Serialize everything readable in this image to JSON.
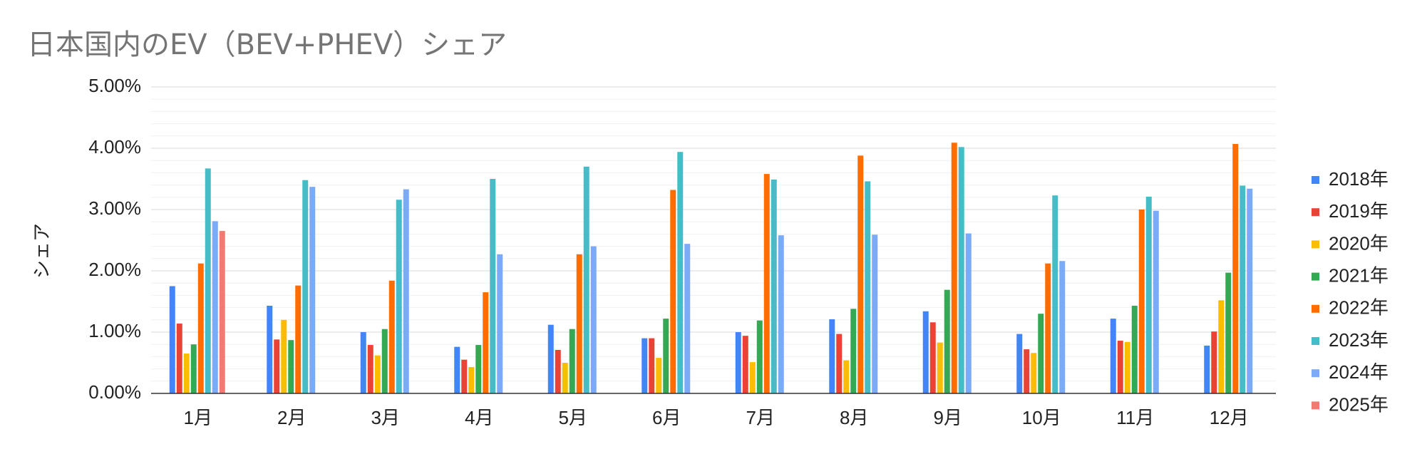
{
  "chart_data": {
    "type": "bar",
    "title": "日本国内のEV（BEV+PHEV）シェア",
    "xlabel": "",
    "ylabel": "シェア",
    "ylim": [
      0,
      5
    ],
    "yticks": [
      "0.00%",
      "1.00%",
      "2.00%",
      "3.00%",
      "4.00%",
      "5.00%"
    ],
    "grid": true,
    "legend_position": "right",
    "categories": [
      "1月",
      "2月",
      "3月",
      "4月",
      "5月",
      "6月",
      "7月",
      "8月",
      "9月",
      "10月",
      "11月",
      "12月"
    ],
    "series": [
      {
        "name": "2018年",
        "color": "#4285F4",
        "values": [
          1.75,
          1.43,
          1.0,
          0.76,
          1.12,
          0.9,
          1.0,
          1.21,
          1.34,
          0.97,
          1.22,
          0.78
        ]
      },
      {
        "name": "2019年",
        "color": "#EA4335",
        "values": [
          1.14,
          0.88,
          0.79,
          0.55,
          0.71,
          0.9,
          0.94,
          0.97,
          1.16,
          0.72,
          0.86,
          1.01
        ]
      },
      {
        "name": "2020年",
        "color": "#FBBC04",
        "values": [
          0.65,
          1.2,
          0.62,
          0.43,
          0.5,
          0.58,
          0.51,
          0.54,
          0.83,
          0.66,
          0.84,
          1.52
        ]
      },
      {
        "name": "2021年",
        "color": "#34A853",
        "values": [
          0.8,
          0.87,
          1.05,
          0.79,
          1.05,
          1.22,
          1.19,
          1.38,
          1.69,
          1.3,
          1.43,
          1.97
        ]
      },
      {
        "name": "2022年",
        "color": "#FF6D01",
        "values": [
          2.12,
          1.76,
          1.84,
          1.65,
          2.27,
          3.32,
          3.58,
          3.88,
          4.09,
          2.12,
          3.0,
          4.07
        ]
      },
      {
        "name": "2023年",
        "color": "#46BDC6",
        "values": [
          3.67,
          3.48,
          3.16,
          3.5,
          3.7,
          3.94,
          3.49,
          3.46,
          4.02,
          3.23,
          3.21,
          3.39
        ]
      },
      {
        "name": "2024年",
        "color": "#7BAAF7",
        "values": [
          2.81,
          3.37,
          3.33,
          2.27,
          2.4,
          2.44,
          2.58,
          2.59,
          2.61,
          2.16,
          2.98,
          3.34
        ]
      },
      {
        "name": "2025年",
        "color": "#F07B72",
        "values": [
          2.65,
          null,
          null,
          null,
          null,
          null,
          null,
          null,
          null,
          null,
          null,
          null
        ]
      }
    ]
  }
}
